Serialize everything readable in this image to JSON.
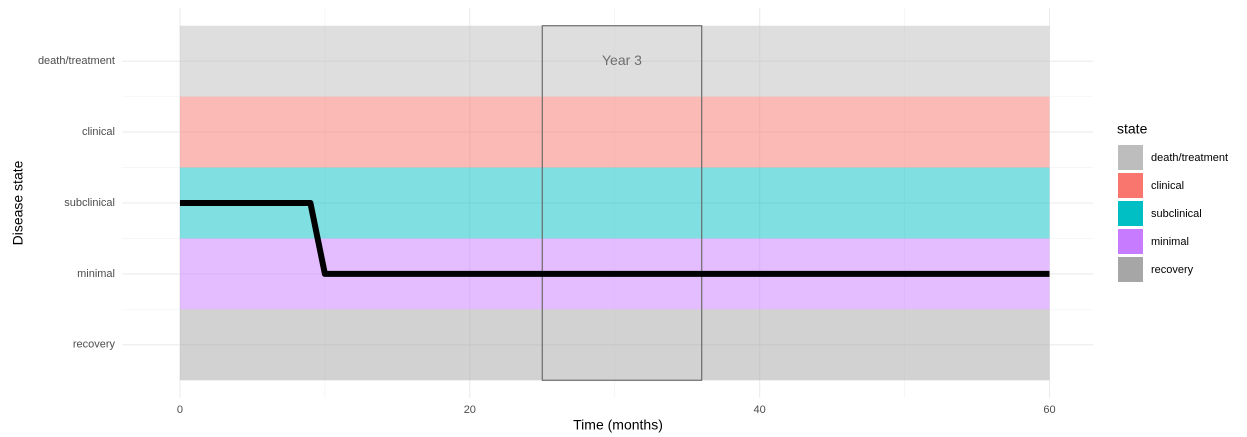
{
  "chart_data": {
    "type": "line",
    "x_label": "Time (months)",
    "y_label": "Disease state",
    "xlim": [
      -4,
      63
    ],
    "xticks": [
      0,
      20,
      40,
      60
    ],
    "ylim": [
      0.25,
      5.75
    ],
    "yticks": [
      {
        "value": 1,
        "label": "recovery"
      },
      {
        "value": 2,
        "label": "minimal"
      },
      {
        "value": 3,
        "label": "subclinical"
      },
      {
        "value": 4,
        "label": "clinical"
      },
      {
        "value": 5,
        "label": "death/treatment"
      }
    ],
    "grid": true,
    "legend_title": "state",
    "bands": [
      {
        "name": "death/treatment",
        "color": "#bdbdbd",
        "x": [
          0,
          60
        ],
        "y": [
          4.5,
          5.5
        ]
      },
      {
        "name": "clinical",
        "color": "#f8766d",
        "x": [
          0,
          60
        ],
        "y": [
          3.5,
          4.5
        ]
      },
      {
        "name": "subclinical",
        "color": "#00bfc4",
        "x": [
          0,
          60
        ],
        "y": [
          2.5,
          3.5
        ]
      },
      {
        "name": "minimal",
        "color": "#c77cff",
        "x": [
          0,
          60
        ],
        "y": [
          1.5,
          2.5
        ]
      },
      {
        "name": "recovery",
        "color": "#a6a6a6",
        "x": [
          0,
          60
        ],
        "y": [
          0.5,
          1.5
        ]
      }
    ],
    "series": [
      {
        "color": "#000000",
        "x": [
          0,
          9,
          10,
          60
        ],
        "values": [
          3,
          3,
          2,
          2
        ]
      }
    ],
    "annotation": {
      "label": "Year 3",
      "x": [
        25,
        36
      ],
      "y": [
        0.5,
        5.5
      ],
      "label_x": 30.5,
      "label_y": 5
    }
  }
}
